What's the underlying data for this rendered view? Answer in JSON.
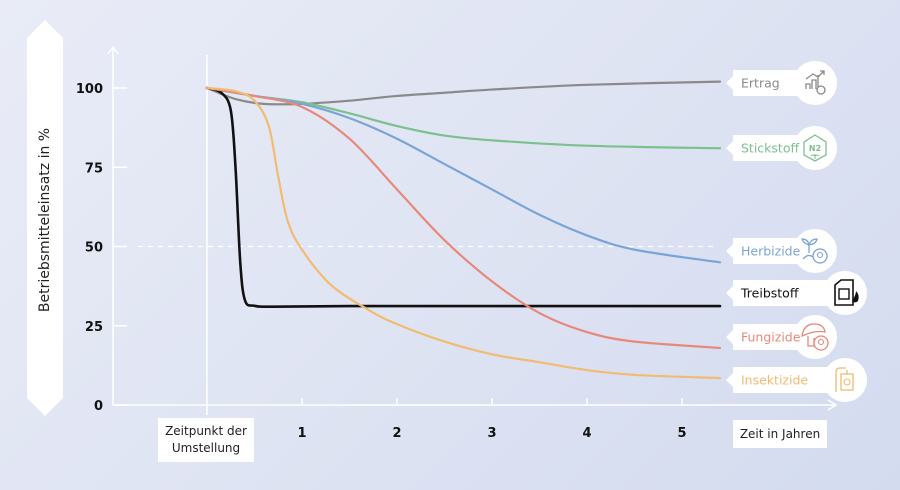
{
  "chart_data": {
    "type": "line",
    "ylabel": "Betriebsmitteleinsatz in %",
    "xlabel": "Zeit in Jahren",
    "x_origin_label": "Zeitpunkt der Umstellung",
    "xticks": [
      1,
      2,
      3,
      4,
      5
    ],
    "yticks": [
      0,
      25,
      50,
      75,
      100
    ],
    "xlim": [
      -1,
      5.6
    ],
    "ylim": [
      0,
      110
    ],
    "reference_line": 50,
    "legend_placement": "right, labels at line ends",
    "series": [
      {
        "name": "Ertrag",
        "color": "#8a8a8a",
        "icon": "yield-chart-icon",
        "points": [
          [
            0,
            100
          ],
          [
            0.3,
            96.5
          ],
          [
            0.6,
            95
          ],
          [
            1,
            95
          ],
          [
            1.5,
            96
          ],
          [
            2,
            97.5
          ],
          [
            2.5,
            98.5
          ],
          [
            3,
            99.5
          ],
          [
            4,
            101
          ],
          [
            5.4,
            102
          ]
        ]
      },
      {
        "name": "Stickstoff",
        "color": "#7cc08e",
        "icon": "nitrogen-cycle-icon",
        "points": [
          [
            0,
            100
          ],
          [
            0.5,
            97.5
          ],
          [
            1,
            95.5
          ],
          [
            1.5,
            92
          ],
          [
            2,
            88
          ],
          [
            2.5,
            85
          ],
          [
            3,
            83.5
          ],
          [
            4,
            81.8
          ],
          [
            5.4,
            81
          ]
        ]
      },
      {
        "name": "Herbizide",
        "color": "#7aa4d8",
        "icon": "herbicide-plant-icon",
        "points": [
          [
            0,
            100
          ],
          [
            0.5,
            97.5
          ],
          [
            1,
            95
          ],
          [
            1.5,
            90.5
          ],
          [
            2,
            84
          ],
          [
            2.5,
            76
          ],
          [
            3,
            68
          ],
          [
            3.5,
            60
          ],
          [
            4,
            53.5
          ],
          [
            4.5,
            49
          ],
          [
            5.4,
            45
          ]
        ]
      },
      {
        "name": "Treibstoff",
        "color": "#111111",
        "icon": "fuel-canister-icon",
        "points": [
          [
            0,
            100
          ],
          [
            0.15,
            98.5
          ],
          [
            0.25,
            93
          ],
          [
            0.3,
            75
          ],
          [
            0.35,
            45
          ],
          [
            0.4,
            33
          ],
          [
            0.5,
            31.3
          ],
          [
            0.7,
            31
          ],
          [
            1.5,
            31.2
          ],
          [
            3,
            31.2
          ],
          [
            5.4,
            31.2
          ]
        ]
      },
      {
        "name": "Fungizide",
        "color": "#e8887a",
        "icon": "mushroom-skull-icon",
        "points": [
          [
            0,
            100
          ],
          [
            0.5,
            97.5
          ],
          [
            1,
            94
          ],
          [
            1.5,
            84
          ],
          [
            2,
            68
          ],
          [
            2.5,
            52
          ],
          [
            3,
            39
          ],
          [
            3.5,
            29
          ],
          [
            4,
            23
          ],
          [
            4.5,
            20
          ],
          [
            5.4,
            18
          ]
        ]
      },
      {
        "name": "Insektizide",
        "color": "#f2bb72",
        "icon": "insecticide-sprayer-icon",
        "points": [
          [
            0,
            100
          ],
          [
            0.3,
            99
          ],
          [
            0.5,
            96
          ],
          [
            0.65,
            88
          ],
          [
            0.75,
            72
          ],
          [
            0.85,
            58
          ],
          [
            1,
            49
          ],
          [
            1.3,
            38
          ],
          [
            1.7,
            30
          ],
          [
            2,
            25.5
          ],
          [
            2.5,
            20
          ],
          [
            3,
            16
          ],
          [
            3.5,
            13.5
          ],
          [
            4,
            11
          ],
          [
            4.5,
            9.5
          ],
          [
            5.4,
            8.5
          ]
        ]
      }
    ]
  }
}
